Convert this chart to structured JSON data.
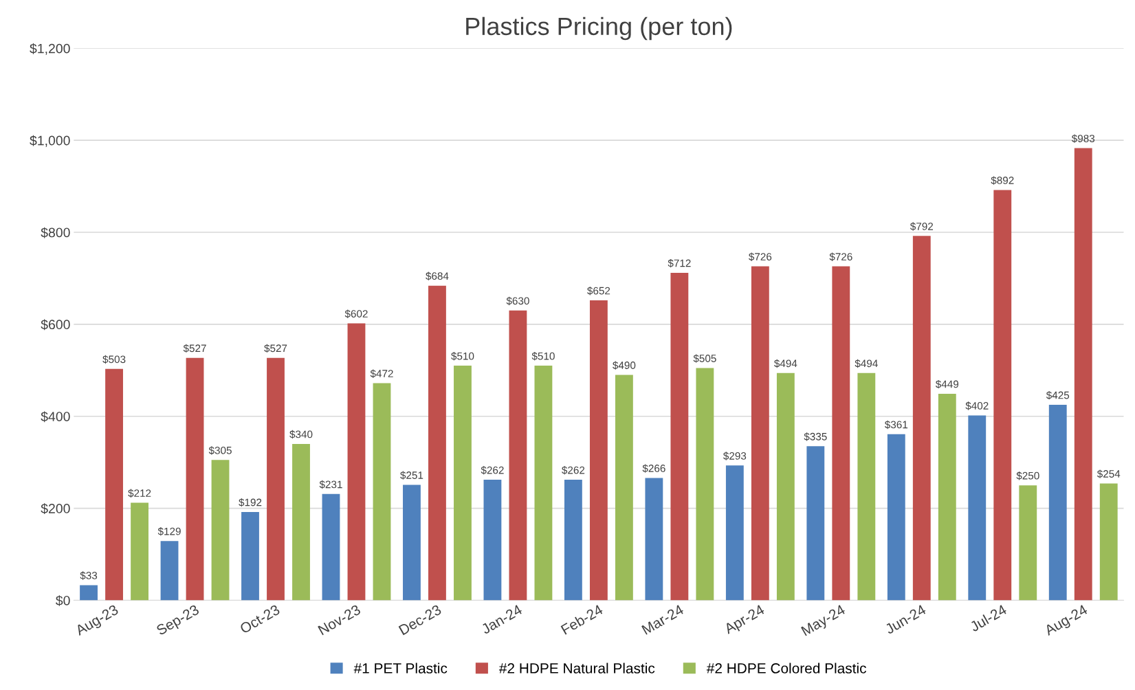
{
  "chart_data": {
    "type": "bar",
    "title": "Plastics Pricing (per ton)",
    "categories": [
      "Aug-23",
      "Sep-23",
      "Oct-23",
      "Nov-23",
      "Dec-23",
      "Jan-24",
      "Feb-24",
      "Mar-24",
      "Apr-24",
      "May-24",
      "Jun-24",
      "Jul-24",
      "Aug-24"
    ],
    "series": [
      {
        "name": "#1 PET Plastic",
        "color": "#4f81bd",
        "values": [
          33,
          129,
          192,
          231,
          251,
          262,
          262,
          266,
          293,
          335,
          361,
          402,
          425
        ],
        "value_labels": [
          "$33",
          "$129",
          "$192",
          "$231",
          "$251",
          "$262",
          "$262",
          "$266",
          "$293",
          "$335",
          "$361",
          "$402",
          "$425"
        ]
      },
      {
        "name": "#2 HDPE Natural Plastic",
        "color": "#c0504d",
        "values": [
          503,
          527,
          527,
          602,
          684,
          630,
          652,
          712,
          726,
          726,
          792,
          892,
          983
        ],
        "value_labels": [
          "$503",
          "$527",
          "$527",
          "$602",
          "$684",
          "$630",
          "$652",
          "$712",
          "$726",
          "$726",
          "$792",
          "$892",
          "$983"
        ]
      },
      {
        "name": "#2 HDPE Colored Plastic",
        "color": "#9bbb59",
        "values": [
          212,
          305,
          340,
          472,
          510,
          510,
          490,
          505,
          494,
          494,
          449,
          250,
          254
        ],
        "value_labels": [
          "$212",
          "$305",
          "$340",
          "$472",
          "$510",
          "$510",
          "$490",
          "$505",
          "$494",
          "$494",
          "$449",
          "$250",
          "$254"
        ]
      }
    ],
    "ylim": [
      0,
      1200
    ],
    "yticks": [
      {
        "value": 0,
        "label": "$0"
      },
      {
        "value": 200,
        "label": "$200"
      },
      {
        "value": 400,
        "label": "$400"
      },
      {
        "value": 600,
        "label": "$600"
      },
      {
        "value": 800,
        "label": "$800"
      },
      {
        "value": 1000,
        "label": "$1,000"
      },
      {
        "value": 1200,
        "label": "$1,200"
      }
    ],
    "grid": "y",
    "legend": "bottom"
  }
}
